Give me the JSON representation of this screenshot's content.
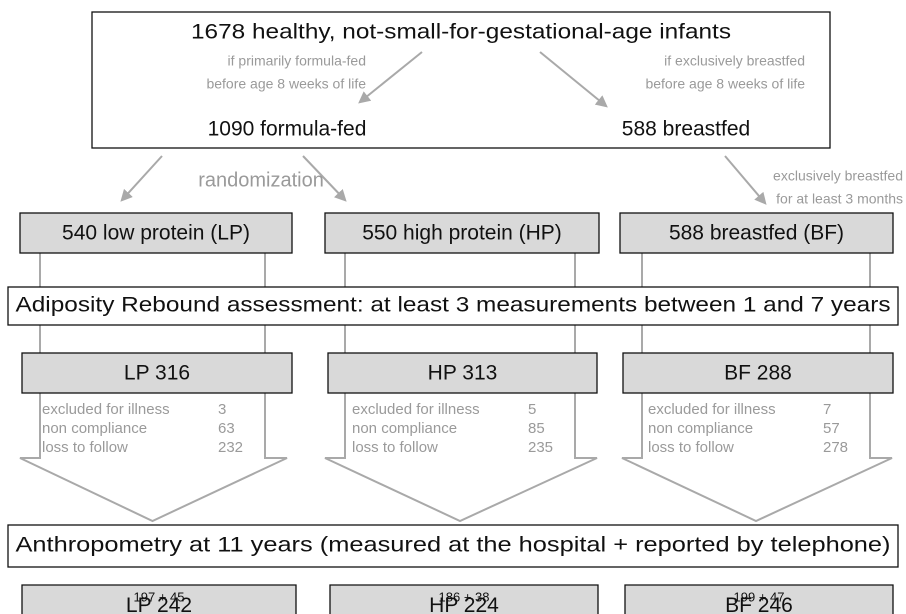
{
  "top": {
    "title": "1678 healthy, not-small-for-gestational-age infants",
    "left_note": [
      "if primarily formula-fed",
      "before age 8 weeks of life"
    ],
    "right_note": [
      "if exclusively breastfed",
      "before age 8 weeks of life"
    ],
    "left": "1090 formula-fed",
    "right": "588 breastfed"
  },
  "randomization": "randomization",
  "bf_note": [
    "exclusively breastfed",
    "for at least 3 months"
  ],
  "assessment": "Adiposity Rebound assessment: at least 3 measurements between 1 and 7 years",
  "anthropometry": "Anthropometry at 11 years (measured at the hospital + reported by telephone)",
  "groups": [
    {
      "label": "540 low protein (LP)",
      "followup": "LP 316",
      "exclusions": [
        {
          "reason": "excluded for illness",
          "count": 3
        },
        {
          "reason": "non  compliance",
          "count": 63
        },
        {
          "reason": "loss to follow",
          "count": 232
        }
      ],
      "final_detail": "197 + 45",
      "final": "LP 242"
    },
    {
      "label": "550 high protein (HP)",
      "followup": "HP 313",
      "exclusions": [
        {
          "reason": "excluded for illness",
          "count": 5
        },
        {
          "reason": "non  compliance",
          "count": 85
        },
        {
          "reason": "loss to follow",
          "count": 235
        }
      ],
      "final_detail": "186 + 38",
      "final": "HP 224"
    },
    {
      "label": "588 breastfed (BF)",
      "followup": "BF 288",
      "exclusions": [
        {
          "reason": "excluded for illness",
          "count": 7
        },
        {
          "reason": "non  compliance",
          "count": 57
        },
        {
          "reason": "loss to follow",
          "count": 278
        }
      ],
      "final_detail": "199 + 47",
      "final": "BF 246"
    }
  ]
}
